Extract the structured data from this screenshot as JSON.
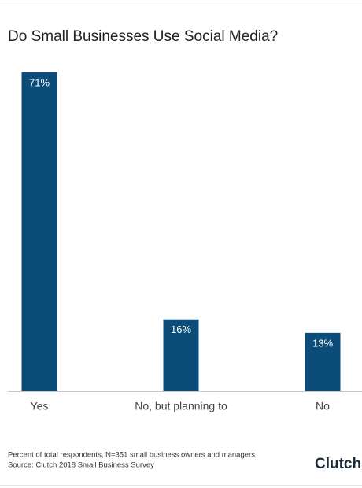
{
  "chart_data": {
    "type": "bar",
    "title": "Do Small Businesses Use Social Media?",
    "categories": [
      "Yes",
      "No, but planning to",
      "No"
    ],
    "values": [
      71,
      16,
      13
    ],
    "value_labels": [
      "71%",
      "16%",
      "13%"
    ],
    "color": "#0b4c78",
    "notes": [
      "Percent of total respondents, N=351 small business owners and managers",
      "Source: Clutch 2018 Small Business Survey"
    ],
    "brand": "Clutch"
  }
}
